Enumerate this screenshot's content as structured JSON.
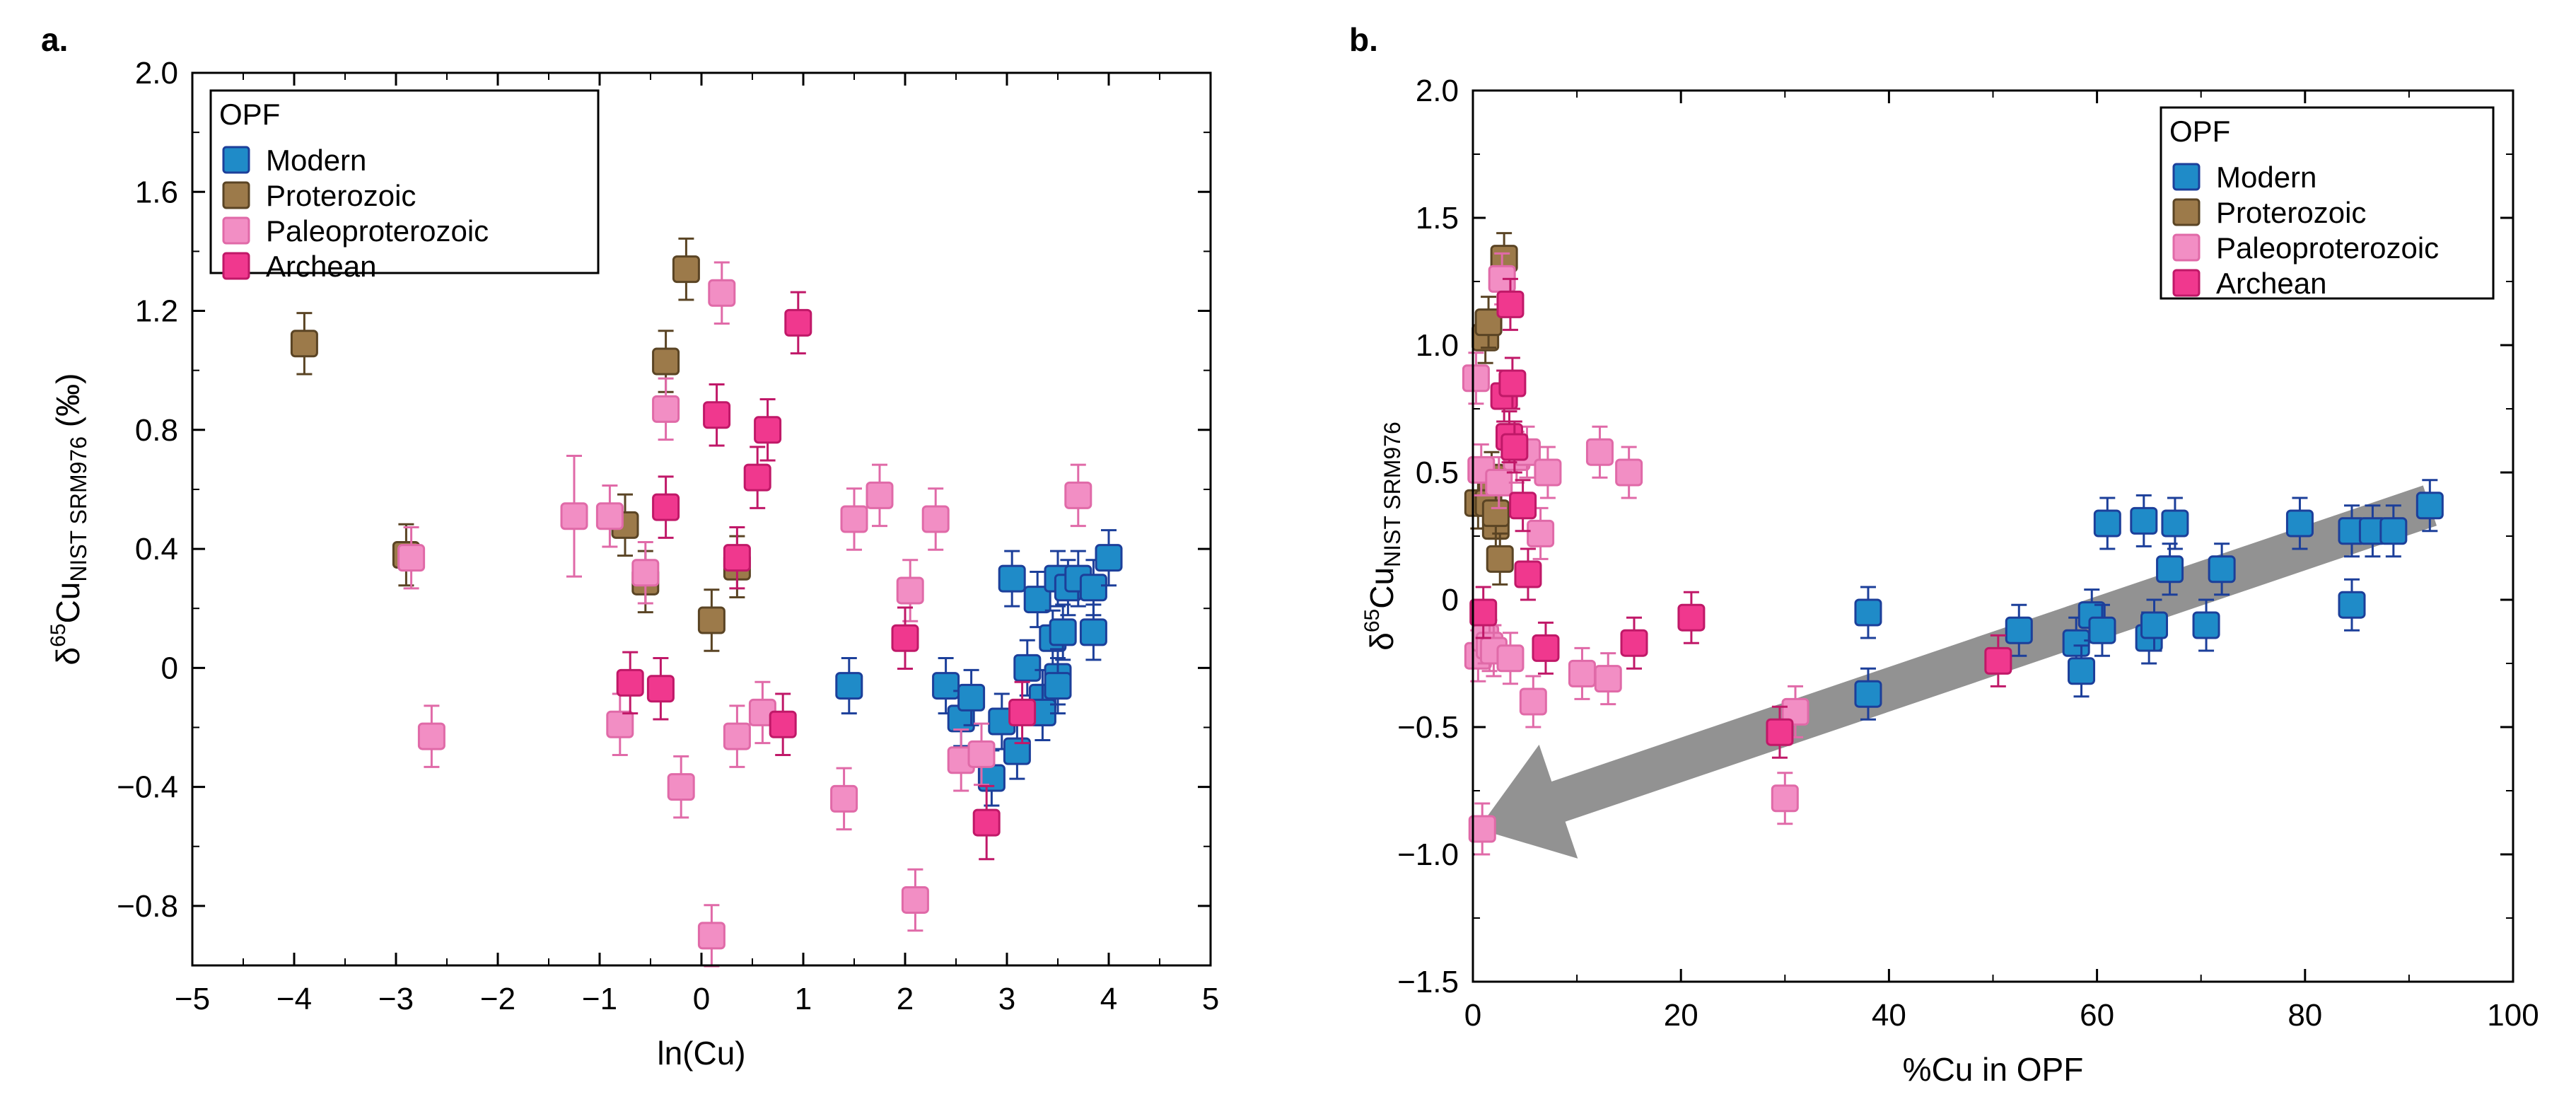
{
  "chart_data": [
    {
      "type": "scatter",
      "panel_label": "a.",
      "title": "",
      "xlabel": "ln(Cu)",
      "ylabel_prefix": "δ",
      "ylabel_sup": "65",
      "ylabel_main": "Cu",
      "ylabel_sub": "NIST SRM976",
      "ylabel_suffix": " (‰)",
      "xlim": [
        -5,
        5
      ],
      "ylim": [
        -1.0,
        2.0
      ],
      "xticks": [
        -5,
        -4,
        -3,
        -2,
        -1,
        0,
        1,
        2,
        3,
        4,
        5
      ],
      "xtick_labels": [
        "−5",
        "−4",
        "−3",
        "−2",
        "−1",
        "0",
        "1",
        "2",
        "3",
        "4",
        "5"
      ],
      "yticks": [
        -0.8,
        -0.4,
        0,
        0.4,
        0.8,
        1.2,
        1.6,
        2.0
      ],
      "ytick_labels": [
        "−0.8",
        "−0.4",
        "0",
        "0.4",
        "0.8",
        "1.2",
        "1.6",
        "2.0"
      ],
      "legend_title": "OPF",
      "legend_position": "top-left",
      "series": [
        {
          "name": "Modern",
          "fill": "#1f8bc8",
          "stroke": "#1c3f9a",
          "points": [
            [
              1.45,
              -0.06,
              0.05
            ],
            [
              2.4,
              -0.06,
              0.05
            ],
            [
              2.55,
              -0.17,
              0.05
            ],
            [
              2.65,
              -0.1,
              0.05
            ],
            [
              2.85,
              -0.37,
              0.05
            ],
            [
              2.95,
              -0.18,
              0.05
            ],
            [
              3.05,
              0.3,
              0.05
            ],
            [
              3.1,
              -0.28,
              0.05
            ],
            [
              3.2,
              0.0,
              0.05
            ],
            [
              3.3,
              0.23,
              0.05
            ],
            [
              3.35,
              -0.1,
              0.05
            ],
            [
              3.35,
              -0.15,
              0.05
            ],
            [
              3.45,
              0.1,
              0.05
            ],
            [
              3.5,
              0.3,
              0.05
            ],
            [
              3.5,
              -0.03,
              0.05
            ],
            [
              3.5,
              -0.06,
              0.05
            ],
            [
              3.55,
              0.12,
              0.05
            ],
            [
              3.6,
              0.27,
              0.05
            ],
            [
              3.7,
              0.3,
              0.05
            ],
            [
              3.85,
              0.27,
              0.05
            ],
            [
              3.85,
              0.12,
              0.05
            ],
            [
              4.0,
              0.37,
              0.05
            ]
          ]
        },
        {
          "name": "Proterozoic",
          "fill": "#9c7a4a",
          "stroke": "#5a4424",
          "points": [
            [
              -3.9,
              1.09,
              0.06
            ],
            [
              -2.9,
              0.38,
              0.06
            ],
            [
              -0.75,
              0.48,
              0.06
            ],
            [
              -0.55,
              0.29,
              0.06
            ],
            [
              -0.35,
              1.03,
              0.06
            ],
            [
              -0.15,
              1.34,
              0.06
            ],
            [
              0.1,
              0.16,
              0.06
            ],
            [
              0.35,
              0.34,
              0.06
            ]
          ]
        },
        {
          "name": "Paleoproterozoic",
          "fill": "#f28ec4",
          "stroke": "#e06aa8",
          "points": [
            [
              -2.85,
              0.37,
              0.06
            ],
            [
              -2.65,
              -0.23,
              0.06
            ],
            [
              -1.25,
              0.51,
              0.16
            ],
            [
              -0.9,
              0.51,
              0.06
            ],
            [
              -0.8,
              -0.19,
              0.06
            ],
            [
              -0.55,
              0.32,
              0.06
            ],
            [
              -0.35,
              0.87,
              0.06
            ],
            [
              -0.2,
              -0.4,
              0.06
            ],
            [
              0.1,
              -0.9,
              0.06
            ],
            [
              0.2,
              1.26,
              0.06
            ],
            [
              0.35,
              -0.23,
              0.06
            ],
            [
              0.6,
              -0.15,
              0.06
            ],
            [
              1.4,
              -0.44,
              0.06
            ],
            [
              1.5,
              0.5,
              0.06
            ],
            [
              1.75,
              0.58,
              0.06
            ],
            [
              2.05,
              0.26,
              0.06
            ],
            [
              2.1,
              -0.78,
              0.06
            ],
            [
              2.3,
              0.5,
              0.06
            ],
            [
              2.55,
              -0.31,
              0.06
            ],
            [
              2.75,
              -0.29,
              0.06
            ],
            [
              3.7,
              0.58,
              0.06
            ]
          ]
        },
        {
          "name": "Archean",
          "fill": "#f0388e",
          "stroke": "#c01868",
          "points": [
            [
              -0.7,
              -0.05,
              0.06
            ],
            [
              -0.4,
              -0.07,
              0.06
            ],
            [
              -0.35,
              0.54,
              0.06
            ],
            [
              0.15,
              0.85,
              0.06
            ],
            [
              0.35,
              0.37,
              0.06
            ],
            [
              0.55,
              0.64,
              0.06
            ],
            [
              0.65,
              0.8,
              0.06
            ],
            [
              0.8,
              -0.19,
              0.06
            ],
            [
              0.95,
              1.16,
              0.06
            ],
            [
              2.0,
              0.1,
              0.06
            ],
            [
              2.8,
              -0.52,
              0.08
            ],
            [
              3.15,
              -0.15,
              0.06
            ]
          ]
        }
      ]
    },
    {
      "type": "scatter",
      "panel_label": "b.",
      "title": "",
      "xlabel": "%Cu in OPF",
      "ylabel_prefix": "δ",
      "ylabel_sup": "65",
      "ylabel_main": "Cu",
      "ylabel_sub": "NIST SRM976",
      "ylabel_suffix": "",
      "xlim": [
        0,
        100
      ],
      "ylim": [
        -1.5,
        2.0
      ],
      "xticks": [
        0,
        20,
        40,
        60,
        80,
        100
      ],
      "xtick_labels": [
        "0",
        "20",
        "40",
        "60",
        "80",
        "100"
      ],
      "yticks": [
        -1.5,
        -1.0,
        -0.5,
        0,
        0.5,
        1.0,
        1.5,
        2.0
      ],
      "ytick_labels": [
        "−1.5",
        "−1.0",
        "−0.5",
        "0",
        "0.5",
        "1.0",
        "1.5",
        "2.0"
      ],
      "legend_title": "OPF",
      "legend_position": "top-right",
      "trend_arrow": {
        "from": [
          92,
          0.37
        ],
        "to": [
          0.5,
          -0.9
        ],
        "color": "#8c8c8c"
      },
      "series": [
        {
          "name": "Modern",
          "fill": "#1f8bc8",
          "stroke": "#1c3f9a",
          "points": [
            [
              38,
              -0.05,
              0.05
            ],
            [
              38,
              -0.37,
              0.05
            ],
            [
              52.5,
              -0.12,
              0.05
            ],
            [
              58,
              -0.17,
              0.05
            ],
            [
              58.5,
              -0.28,
              0.05
            ],
            [
              59.5,
              -0.06,
              0.05
            ],
            [
              60.5,
              -0.12,
              0.05
            ],
            [
              61,
              0.3,
              0.05
            ],
            [
              64.5,
              0.31,
              0.05
            ],
            [
              65,
              -0.15,
              0.05
            ],
            [
              65.5,
              -0.1,
              0.05
            ],
            [
              67,
              0.12,
              0.05
            ],
            [
              67.5,
              0.3,
              0.05
            ],
            [
              70.5,
              -0.1,
              0.05
            ],
            [
              72,
              0.12,
              0.05
            ],
            [
              79.5,
              0.3,
              0.05
            ],
            [
              84.5,
              0.27,
              0.05
            ],
            [
              84.5,
              -0.02,
              0.05
            ],
            [
              86.5,
              0.27,
              0.05
            ],
            [
              88.5,
              0.27,
              0.05
            ],
            [
              92,
              0.37,
              0.05
            ]
          ]
        },
        {
          "name": "Proterozoic",
          "fill": "#9c7a4a",
          "stroke": "#5a4424",
          "points": [
            [
              1.2,
              1.03,
              0.05
            ],
            [
              1.5,
              1.09,
              0.05
            ],
            [
              0.5,
              0.38,
              0.05
            ],
            [
              1.8,
              0.48,
              0.05
            ],
            [
              1.5,
              0.38,
              0.05
            ],
            [
              2.2,
              0.29,
              0.05
            ],
            [
              2.6,
              0.16,
              0.05
            ],
            [
              2.2,
              0.34,
              0.05
            ],
            [
              3.0,
              1.34,
              0.05
            ]
          ]
        },
        {
          "name": "Paleoproterozoic",
          "fill": "#f28ec4",
          "stroke": "#e06aa8",
          "points": [
            [
              0.3,
              0.87,
              0.05
            ],
            [
              0.5,
              -0.22,
              0.05
            ],
            [
              0.8,
              0.51,
              0.05
            ],
            [
              1.2,
              -0.15,
              0.05
            ],
            [
              1.6,
              -0.18,
              0.05
            ],
            [
              2.0,
              -0.2,
              0.05
            ],
            [
              2.5,
              0.46,
              0.05
            ],
            [
              2.8,
              1.26,
              0.05
            ],
            [
              3.6,
              -0.23,
              0.05
            ],
            [
              4.2,
              0.56,
              0.05
            ],
            [
              5.2,
              0.58,
              0.05
            ],
            [
              5.8,
              -0.4,
              0.05
            ],
            [
              6.5,
              0.26,
              0.05
            ],
            [
              7.2,
              0.5,
              0.05
            ],
            [
              10.5,
              -0.29,
              0.05
            ],
            [
              12.2,
              0.58,
              0.05
            ],
            [
              13.0,
              -0.31,
              0.05
            ],
            [
              15.0,
              0.5,
              0.05
            ],
            [
              30.0,
              -0.78,
              0.05
            ],
            [
              31.0,
              -0.44,
              0.05
            ],
            [
              0.9,
              -0.9,
              0.05
            ]
          ]
        },
        {
          "name": "Archean",
          "fill": "#f0388e",
          "stroke": "#c01868",
          "points": [
            [
              3.6,
              1.16,
              0.05
            ],
            [
              3.0,
              0.8,
              0.05
            ],
            [
              3.8,
              0.85,
              0.05
            ],
            [
              3.5,
              0.64,
              0.05
            ],
            [
              4.0,
              0.6,
              0.05
            ],
            [
              4.8,
              0.37,
              0.05
            ],
            [
              5.3,
              0.1,
              0.05
            ],
            [
              7.0,
              -0.19,
              0.05
            ],
            [
              1.0,
              -0.05,
              0.05
            ],
            [
              15.5,
              -0.17,
              0.05
            ],
            [
              21.0,
              -0.07,
              0.05
            ],
            [
              29.5,
              -0.52,
              0.05
            ],
            [
              50.5,
              -0.24,
              0.05
            ]
          ]
        }
      ]
    }
  ]
}
